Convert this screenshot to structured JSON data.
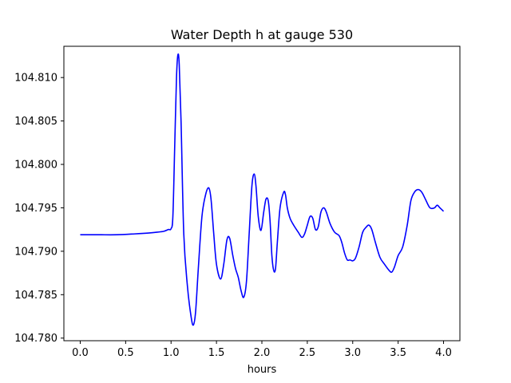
{
  "chart_data": {
    "type": "line",
    "title": "Water Depth h at gauge 530",
    "xlabel": "hours",
    "ylabel": "",
    "xlim": [
      -0.18,
      4.18
    ],
    "ylim": [
      104.7797,
      104.8136
    ],
    "x_ticks": [
      0.0,
      0.5,
      1.0,
      1.5,
      2.0,
      2.5,
      3.0,
      3.5,
      4.0
    ],
    "x_tick_labels": [
      "0.0",
      "0.5",
      "1.0",
      "1.5",
      "2.0",
      "2.5",
      "3.0",
      "3.5",
      "4.0"
    ],
    "y_ticks": [
      104.78,
      104.785,
      104.79,
      104.795,
      104.8,
      104.805,
      104.81
    ],
    "y_tick_labels": [
      "104.780",
      "104.785",
      "104.790",
      "104.795",
      "104.800",
      "104.805",
      "104.810"
    ],
    "grid": false,
    "series": [
      {
        "color": "#0000ff",
        "points": [
          [
            0.0,
            104.7919
          ],
          [
            0.2,
            104.7919
          ],
          [
            0.4,
            104.7919
          ],
          [
            0.6,
            104.792
          ],
          [
            0.75,
            104.7921
          ],
          [
            0.85,
            104.7922
          ],
          [
            0.92,
            104.7923
          ],
          [
            0.97,
            104.7925
          ],
          [
            1.0,
            104.7926
          ],
          [
            1.02,
            104.794
          ],
          [
            1.04,
            104.802
          ],
          [
            1.06,
            104.81
          ],
          [
            1.075,
            104.8126
          ],
          [
            1.09,
            104.8115
          ],
          [
            1.11,
            104.805
          ],
          [
            1.14,
            104.792
          ],
          [
            1.18,
            104.786
          ],
          [
            1.22,
            104.7825
          ],
          [
            1.245,
            104.7815
          ],
          [
            1.27,
            104.783
          ],
          [
            1.3,
            104.788
          ],
          [
            1.34,
            104.794
          ],
          [
            1.38,
            104.7965
          ],
          [
            1.415,
            104.7973
          ],
          [
            1.44,
            104.796
          ],
          [
            1.47,
            104.792
          ],
          [
            1.5,
            104.7885
          ],
          [
            1.545,
            104.7868
          ],
          [
            1.58,
            104.7885
          ],
          [
            1.615,
            104.7913
          ],
          [
            1.645,
            104.7915
          ],
          [
            1.68,
            104.7895
          ],
          [
            1.71,
            104.788
          ],
          [
            1.74,
            104.787
          ],
          [
            1.77,
            104.7855
          ],
          [
            1.8,
            104.7847
          ],
          [
            1.83,
            104.7865
          ],
          [
            1.86,
            104.792
          ],
          [
            1.89,
            104.7975
          ],
          [
            1.915,
            104.7989
          ],
          [
            1.935,
            104.7975
          ],
          [
            1.96,
            104.794
          ],
          [
            1.99,
            104.7924
          ],
          [
            2.02,
            104.7945
          ],
          [
            2.045,
            104.796
          ],
          [
            2.07,
            104.7958
          ],
          [
            2.09,
            104.7935
          ],
          [
            2.11,
            104.7895
          ],
          [
            2.13,
            104.7878
          ],
          [
            2.15,
            104.788
          ],
          [
            2.17,
            104.791
          ],
          [
            2.2,
            104.795
          ],
          [
            2.24,
            104.7968
          ],
          [
            2.26,
            104.7965
          ],
          [
            2.28,
            104.795
          ],
          [
            2.31,
            104.7938
          ],
          [
            2.35,
            104.793
          ],
          [
            2.4,
            104.7922
          ],
          [
            2.44,
            104.7916
          ],
          [
            2.47,
            104.792
          ],
          [
            2.5,
            104.793
          ],
          [
            2.53,
            104.794
          ],
          [
            2.56,
            104.7938
          ],
          [
            2.59,
            104.7925
          ],
          [
            2.62,
            104.7928
          ],
          [
            2.65,
            104.7945
          ],
          [
            2.68,
            104.795
          ],
          [
            2.71,
            104.7945
          ],
          [
            2.75,
            104.7932
          ],
          [
            2.8,
            104.7922
          ],
          [
            2.85,
            104.7918
          ],
          [
            2.88,
            104.791
          ],
          [
            2.91,
            104.7898
          ],
          [
            2.94,
            104.789
          ],
          [
            2.97,
            104.789
          ],
          [
            3.0,
            104.7889
          ],
          [
            3.03,
            104.7892
          ],
          [
            3.07,
            104.7905
          ],
          [
            3.11,
            104.7922
          ],
          [
            3.15,
            104.7928
          ],
          [
            3.18,
            104.793
          ],
          [
            3.21,
            104.7925
          ],
          [
            3.25,
            104.791
          ],
          [
            3.3,
            104.7893
          ],
          [
            3.35,
            104.7885
          ],
          [
            3.4,
            104.7878
          ],
          [
            3.43,
            104.7876
          ],
          [
            3.46,
            104.7882
          ],
          [
            3.5,
            104.7895
          ],
          [
            3.55,
            104.7905
          ],
          [
            3.6,
            104.793
          ],
          [
            3.64,
            104.7958
          ],
          [
            3.68,
            104.7968
          ],
          [
            3.72,
            104.7971
          ],
          [
            3.76,
            104.7968
          ],
          [
            3.8,
            104.796
          ],
          [
            3.85,
            104.795
          ],
          [
            3.9,
            104.795
          ],
          [
            3.93,
            104.7953
          ],
          [
            3.96,
            104.795
          ],
          [
            4.0,
            104.7946
          ]
        ]
      }
    ]
  }
}
